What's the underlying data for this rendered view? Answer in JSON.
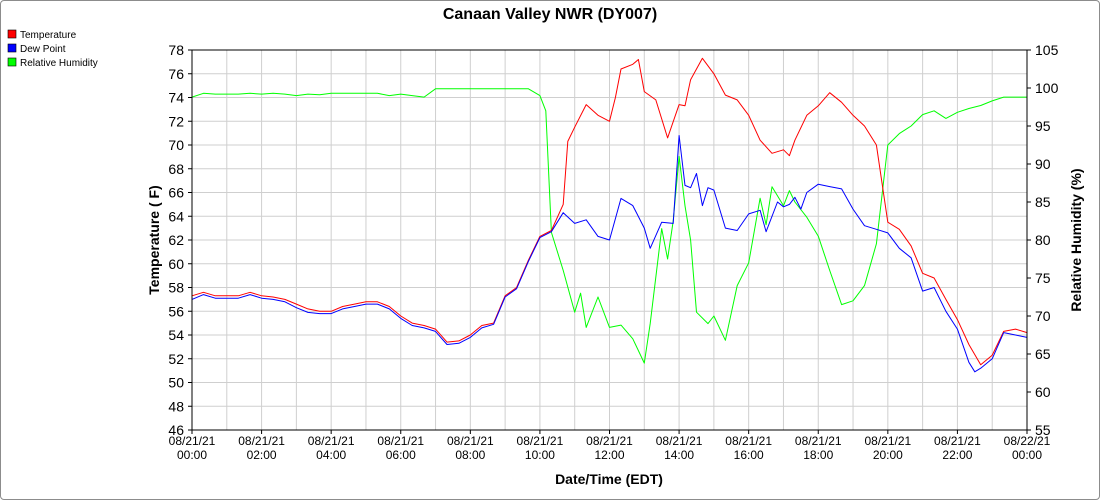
{
  "chart_data": {
    "type": "line",
    "title": "Canaan Valley NWR (DY007)",
    "xlabel": "Date/Time (EDT)",
    "ylabel_left": "Temperature ( F)",
    "ylabel_right": "Relative Humidity (%)",
    "ylim_left": [
      46,
      78
    ],
    "ylim_right": [
      55,
      105
    ],
    "yticks_left": [
      46,
      48,
      50,
      52,
      54,
      56,
      58,
      60,
      62,
      64,
      66,
      68,
      70,
      72,
      74,
      76,
      78
    ],
    "yticks_right": [
      55,
      60,
      65,
      70,
      75,
      80,
      85,
      90,
      95,
      100,
      105
    ],
    "xlim_hours": [
      0,
      24
    ],
    "xticks": [
      {
        "h": 0,
        "date": "08/21/21",
        "time": "00:00"
      },
      {
        "h": 2,
        "date": "08/21/21",
        "time": "02:00"
      },
      {
        "h": 4,
        "date": "08/21/21",
        "time": "04:00"
      },
      {
        "h": 6,
        "date": "08/21/21",
        "time": "06:00"
      },
      {
        "h": 8,
        "date": "08/21/21",
        "time": "08:00"
      },
      {
        "h": 10,
        "date": "08/21/21",
        "time": "10:00"
      },
      {
        "h": 12,
        "date": "08/21/21",
        "time": "12:00"
      },
      {
        "h": 14,
        "date": "08/21/21",
        "time": "14:00"
      },
      {
        "h": 16,
        "date": "08/21/21",
        "time": "16:00"
      },
      {
        "h": 18,
        "date": "08/21/21",
        "time": "18:00"
      },
      {
        "h": 20,
        "date": "08/21/21",
        "time": "20:00"
      },
      {
        "h": 22,
        "date": "08/21/21",
        "time": "22:00"
      },
      {
        "h": 24,
        "date": "08/22/21",
        "time": "00:00"
      }
    ],
    "grid": true,
    "legend_position": "top-left",
    "series": [
      {
        "name": "Temperature",
        "color": "#ff0000",
        "axis": "left",
        "points": [
          [
            0,
            57.3
          ],
          [
            0.33,
            57.6
          ],
          [
            0.67,
            57.3
          ],
          [
            1,
            57.3
          ],
          [
            1.33,
            57.3
          ],
          [
            1.67,
            57.6
          ],
          [
            2,
            57.3
          ],
          [
            2.33,
            57.2
          ],
          [
            2.67,
            57.0
          ],
          [
            3,
            56.6
          ],
          [
            3.33,
            56.2
          ],
          [
            3.67,
            56.0
          ],
          [
            4,
            56.0
          ],
          [
            4.33,
            56.4
          ],
          [
            4.67,
            56.6
          ],
          [
            5,
            56.8
          ],
          [
            5.33,
            56.8
          ],
          [
            5.67,
            56.4
          ],
          [
            6,
            55.6
          ],
          [
            6.33,
            55.0
          ],
          [
            6.67,
            54.8
          ],
          [
            7,
            54.5
          ],
          [
            7.33,
            53.4
          ],
          [
            7.67,
            53.5
          ],
          [
            8,
            54.0
          ],
          [
            8.33,
            54.8
          ],
          [
            8.67,
            55.0
          ],
          [
            9,
            57.3
          ],
          [
            9.33,
            58.0
          ],
          [
            9.67,
            60.3
          ],
          [
            10,
            62.3
          ],
          [
            10.33,
            62.8
          ],
          [
            10.67,
            65.0
          ],
          [
            10.8,
            70.3
          ],
          [
            11,
            71.5
          ],
          [
            11.33,
            73.4
          ],
          [
            11.67,
            72.5
          ],
          [
            12,
            72.0
          ],
          [
            12.17,
            74.0
          ],
          [
            12.33,
            76.4
          ],
          [
            12.67,
            76.8
          ],
          [
            12.83,
            77.2
          ],
          [
            13,
            74.5
          ],
          [
            13.33,
            73.8
          ],
          [
            13.67,
            70.6
          ],
          [
            14,
            73.4
          ],
          [
            14.17,
            73.3
          ],
          [
            14.33,
            75.5
          ],
          [
            14.67,
            77.3
          ],
          [
            15,
            76.0
          ],
          [
            15.33,
            74.2
          ],
          [
            15.67,
            73.8
          ],
          [
            16,
            72.5
          ],
          [
            16.33,
            70.4
          ],
          [
            16.67,
            69.3
          ],
          [
            17,
            69.6
          ],
          [
            17.17,
            69.1
          ],
          [
            17.33,
            70.4
          ],
          [
            17.67,
            72.5
          ],
          [
            18,
            73.3
          ],
          [
            18.33,
            74.4
          ],
          [
            18.67,
            73.6
          ],
          [
            19,
            72.5
          ],
          [
            19.33,
            71.6
          ],
          [
            19.67,
            70.0
          ],
          [
            20,
            63.5
          ],
          [
            20.33,
            62.9
          ],
          [
            20.67,
            61.5
          ],
          [
            21,
            59.2
          ],
          [
            21.33,
            58.8
          ],
          [
            21.67,
            57.0
          ],
          [
            22,
            55.3
          ],
          [
            22.33,
            53.2
          ],
          [
            22.67,
            51.5
          ],
          [
            23,
            52.3
          ],
          [
            23.33,
            54.3
          ],
          [
            23.67,
            54.5
          ],
          [
            24,
            54.2
          ]
        ]
      },
      {
        "name": "Dew Point",
        "color": "#0000ff",
        "axis": "left",
        "points": [
          [
            0,
            57.0
          ],
          [
            0.33,
            57.4
          ],
          [
            0.67,
            57.1
          ],
          [
            1,
            57.1
          ],
          [
            1.33,
            57.1
          ],
          [
            1.67,
            57.4
          ],
          [
            2,
            57.1
          ],
          [
            2.33,
            57.0
          ],
          [
            2.67,
            56.8
          ],
          [
            3,
            56.3
          ],
          [
            3.33,
            55.9
          ],
          [
            3.67,
            55.8
          ],
          [
            4,
            55.8
          ],
          [
            4.33,
            56.2
          ],
          [
            4.67,
            56.4
          ],
          [
            5,
            56.6
          ],
          [
            5.33,
            56.6
          ],
          [
            5.67,
            56.2
          ],
          [
            6,
            55.4
          ],
          [
            6.33,
            54.8
          ],
          [
            6.67,
            54.6
          ],
          [
            7,
            54.3
          ],
          [
            7.33,
            53.2
          ],
          [
            7.67,
            53.3
          ],
          [
            8,
            53.8
          ],
          [
            8.33,
            54.6
          ],
          [
            8.67,
            54.9
          ],
          [
            9,
            57.2
          ],
          [
            9.33,
            57.9
          ],
          [
            9.67,
            60.2
          ],
          [
            10,
            62.2
          ],
          [
            10.33,
            62.7
          ],
          [
            10.67,
            64.3
          ],
          [
            11,
            63.4
          ],
          [
            11.33,
            63.7
          ],
          [
            11.67,
            62.3
          ],
          [
            12,
            62.0
          ],
          [
            12.33,
            65.5
          ],
          [
            12.67,
            64.9
          ],
          [
            13,
            63.0
          ],
          [
            13.17,
            61.3
          ],
          [
            13.5,
            63.5
          ],
          [
            13.83,
            63.4
          ],
          [
            14,
            70.8
          ],
          [
            14.17,
            66.6
          ],
          [
            14.33,
            66.4
          ],
          [
            14.5,
            67.6
          ],
          [
            14.67,
            64.9
          ],
          [
            14.83,
            66.4
          ],
          [
            15,
            66.2
          ],
          [
            15.33,
            63.0
          ],
          [
            15.67,
            62.8
          ],
          [
            16,
            64.2
          ],
          [
            16.33,
            64.5
          ],
          [
            16.5,
            62.7
          ],
          [
            16.83,
            65.2
          ],
          [
            17,
            64.8
          ],
          [
            17.17,
            65.0
          ],
          [
            17.33,
            65.6
          ],
          [
            17.5,
            64.6
          ],
          [
            17.67,
            66.0
          ],
          [
            18,
            66.7
          ],
          [
            18.33,
            66.5
          ],
          [
            18.67,
            66.3
          ],
          [
            19,
            64.6
          ],
          [
            19.33,
            63.2
          ],
          [
            19.67,
            62.9
          ],
          [
            20,
            62.6
          ],
          [
            20.33,
            61.3
          ],
          [
            20.67,
            60.5
          ],
          [
            21,
            57.7
          ],
          [
            21.33,
            58.0
          ],
          [
            21.67,
            56.0
          ],
          [
            22,
            54.5
          ],
          [
            22.33,
            51.7
          ],
          [
            22.5,
            50.9
          ],
          [
            22.67,
            51.2
          ],
          [
            23,
            52.0
          ],
          [
            23.33,
            54.2
          ],
          [
            23.67,
            54.0
          ],
          [
            24,
            53.8
          ]
        ]
      },
      {
        "name": "Relative Humidity",
        "color": "#00ff00",
        "axis": "right",
        "points": [
          [
            0,
            98.8
          ],
          [
            0.33,
            99.3
          ],
          [
            0.67,
            99.2
          ],
          [
            1,
            99.2
          ],
          [
            1.33,
            99.2
          ],
          [
            1.67,
            99.3
          ],
          [
            2,
            99.2
          ],
          [
            2.33,
            99.3
          ],
          [
            2.67,
            99.2
          ],
          [
            3,
            99.0
          ],
          [
            3.33,
            99.2
          ],
          [
            3.67,
            99.1
          ],
          [
            4,
            99.3
          ],
          [
            4.33,
            99.3
          ],
          [
            4.67,
            99.3
          ],
          [
            5,
            99.3
          ],
          [
            5.33,
            99.3
          ],
          [
            5.67,
            99.0
          ],
          [
            6,
            99.2
          ],
          [
            6.33,
            99.0
          ],
          [
            6.67,
            98.8
          ],
          [
            7,
            99.9
          ],
          [
            7.33,
            99.9
          ],
          [
            7.67,
            99.9
          ],
          [
            8,
            99.9
          ],
          [
            8.33,
            99.9
          ],
          [
            8.67,
            99.9
          ],
          [
            9,
            99.9
          ],
          [
            9.33,
            99.9
          ],
          [
            9.67,
            99.9
          ],
          [
            10,
            99.0
          ],
          [
            10.17,
            97.0
          ],
          [
            10.33,
            81.0
          ],
          [
            10.67,
            76.0
          ],
          [
            11,
            70.5
          ],
          [
            11.17,
            73.0
          ],
          [
            11.33,
            68.5
          ],
          [
            11.67,
            72.5
          ],
          [
            12,
            68.5
          ],
          [
            12.33,
            68.8
          ],
          [
            12.67,
            67.0
          ],
          [
            13,
            63.8
          ],
          [
            13.17,
            69.0
          ],
          [
            13.5,
            81.5
          ],
          [
            13.67,
            77.5
          ],
          [
            13.83,
            82.5
          ],
          [
            14,
            91.0
          ],
          [
            14.17,
            84.5
          ],
          [
            14.33,
            80.0
          ],
          [
            14.5,
            70.5
          ],
          [
            14.83,
            69.0
          ],
          [
            15,
            70.0
          ],
          [
            15.33,
            66.8
          ],
          [
            15.67,
            74.0
          ],
          [
            16,
            77.0
          ],
          [
            16.33,
            85.5
          ],
          [
            16.5,
            82.0
          ],
          [
            16.67,
            87.0
          ],
          [
            17,
            84.5
          ],
          [
            17.17,
            86.5
          ],
          [
            17.33,
            85.0
          ],
          [
            17.67,
            83.0
          ],
          [
            18,
            80.5
          ],
          [
            18.33,
            76.0
          ],
          [
            18.67,
            71.5
          ],
          [
            19,
            72.0
          ],
          [
            19.33,
            74.0
          ],
          [
            19.67,
            79.5
          ],
          [
            20,
            92.5
          ],
          [
            20.33,
            94.0
          ],
          [
            20.67,
            95.0
          ],
          [
            21,
            96.5
          ],
          [
            21.33,
            97.0
          ],
          [
            21.67,
            96.0
          ],
          [
            22,
            96.8
          ],
          [
            22.33,
            97.3
          ],
          [
            22.67,
            97.7
          ],
          [
            23,
            98.3
          ],
          [
            23.33,
            98.8
          ],
          [
            23.67,
            98.8
          ],
          [
            24,
            98.8
          ]
        ]
      }
    ]
  }
}
